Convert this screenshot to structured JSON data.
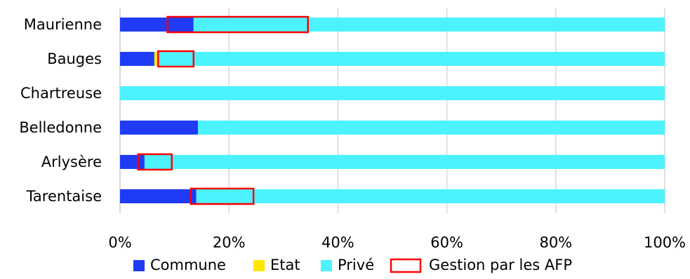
{
  "chart_data": {
    "type": "bar",
    "orientation": "horizontal",
    "stacked": true,
    "percent": true,
    "categories": [
      "Maurienne",
      "Bauges",
      "Chartreuse",
      "Belledonne",
      "Arlysère",
      "Tarentaise"
    ],
    "series": [
      {
        "name": "Commune",
        "color": "#1f3bf5",
        "values": [
          13.5,
          6.3,
          0,
          14.3,
          4.5,
          14.0
        ]
      },
      {
        "name": "Etat",
        "color": "#ffe600",
        "values": [
          0,
          0.6,
          0,
          0,
          0,
          0
        ]
      },
      {
        "name": "Privé",
        "color": "#4cf3ff",
        "values": [
          86.5,
          93.1,
          100,
          85.7,
          95.5,
          86.0
        ]
      }
    ],
    "afp_ranges": [
      {
        "category": "Maurienne",
        "start": 8.7,
        "end": 34.5
      },
      {
        "category": "Bauges",
        "start": 7.0,
        "end": 13.5
      },
      {
        "category": "Arlysère",
        "start": 3.3,
        "end": 9.5
      },
      {
        "category": "Tarentaise",
        "start": 13.0,
        "end": 24.5
      }
    ],
    "xlim": [
      0,
      100
    ],
    "xticks": [
      "0%",
      "20%",
      "40%",
      "60%",
      "80%",
      "100%"
    ],
    "grid": "vertical",
    "legend": {
      "position": "bottom",
      "entries": [
        {
          "label": "Commune",
          "color": "#1f3bf5",
          "kind": "fill"
        },
        {
          "label": "Etat",
          "color": "#ffe600",
          "kind": "fill"
        },
        {
          "label": "Privé",
          "color": "#4cf3ff",
          "kind": "fill"
        },
        {
          "label": "Gestion par les AFP",
          "color": "#ff0000",
          "kind": "outline"
        }
      ]
    },
    "colors": {
      "grid": "#d9d9d9",
      "axis": "#bfbfbf",
      "afp_outline": "#ff0000"
    }
  }
}
